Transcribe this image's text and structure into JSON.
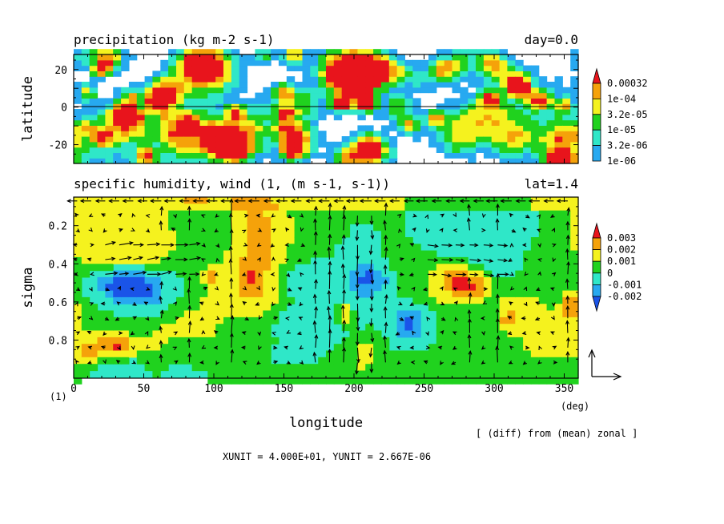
{
  "chart_data": [
    {
      "type": "heatmap",
      "title": "precipitation (kg m-2 s-1)",
      "title_right": "day=0.0",
      "ylabel": "latitude",
      "xlim": [
        0,
        360
      ],
      "ylim": [
        -30,
        28
      ],
      "yticks": [
        20,
        0,
        -20
      ],
      "reference_line_y": 0,
      "legend_placement": "right",
      "legend": {
        "levels": [
          "0.00032",
          "1e-04",
          "3.2e-05",
          "1e-05",
          "3.2e-06",
          "1e-06"
        ],
        "colors": [
          "#e8141c",
          "#f5a20a",
          "#f5f21e",
          "#20d21e",
          "#2fe7c8",
          "#27a9f0"
        ]
      }
    },
    {
      "type": "heatmap",
      "overlay": "vector",
      "title": "specific humidity, wind (1, (m s-1, s-1))",
      "title_right": "lat=1.4",
      "xlabel": "longitude",
      "ylabel": "sigma",
      "xunit": "(deg)",
      "xlim": [
        0,
        360
      ],
      "ylim": [
        0.05,
        1.0
      ],
      "xticks": [
        0,
        50,
        100,
        150,
        200,
        250,
        300,
        350
      ],
      "yticks": [
        "0.2",
        "0.4",
        "0.6",
        "0.8"
      ],
      "legend_placement": "right",
      "legend": {
        "levels": [
          "0.003",
          "0.002",
          "0.001",
          "0",
          "-0.001",
          "-0.002"
        ],
        "colors": [
          "#e8141c",
          "#f5a20a",
          "#f5f21e",
          "#20d21e",
          "#2fe7c8",
          "#27a9f0",
          "#1a54e8"
        ]
      },
      "page_label": "(1)",
      "note": "[ (diff) from (mean) zonal ]",
      "unit_line": "XUNIT = 4.000E+01, YUNIT = 2.667E-06"
    }
  ]
}
